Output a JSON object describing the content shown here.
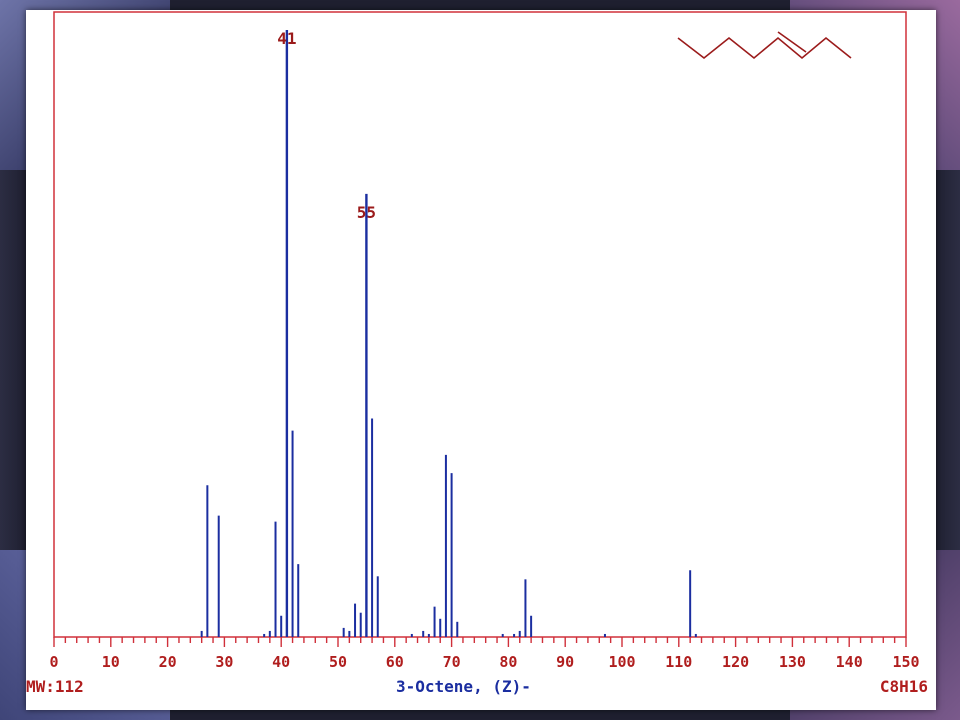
{
  "chart_data": {
    "type": "bar",
    "title": "3-Octene, (Z)-",
    "molecular_weight_label": "MW:112",
    "formula_label": "C8H16",
    "xlabel": "",
    "ylabel": "",
    "xlim": [
      0,
      150
    ],
    "ylim": [
      0,
      100
    ],
    "x_ticks": [
      "0",
      "10",
      "20",
      "30",
      "40",
      "50",
      "60",
      "70",
      "80",
      "90",
      "100",
      "110",
      "120",
      "130",
      "140",
      "150"
    ],
    "peak_annotations": [
      {
        "x": 41,
        "label": "41"
      },
      {
        "x": 55,
        "label": "55"
      }
    ],
    "series": [
      {
        "values": [
          {
            "x": 26,
            "y": 1
          },
          {
            "x": 27,
            "y": 25
          },
          {
            "x": 29,
            "y": 20
          },
          {
            "x": 37,
            "y": 0.5
          },
          {
            "x": 38,
            "y": 1
          },
          {
            "x": 39,
            "y": 19
          },
          {
            "x": 40,
            "y": 3.5
          },
          {
            "x": 41,
            "y": 100
          },
          {
            "x": 42,
            "y": 34
          },
          {
            "x": 43,
            "y": 12
          },
          {
            "x": 51,
            "y": 1.5
          },
          {
            "x": 52,
            "y": 1
          },
          {
            "x": 53,
            "y": 5.5
          },
          {
            "x": 54,
            "y": 4
          },
          {
            "x": 55,
            "y": 73
          },
          {
            "x": 56,
            "y": 36
          },
          {
            "x": 57,
            "y": 10
          },
          {
            "x": 63,
            "y": 0.5
          },
          {
            "x": 65,
            "y": 1
          },
          {
            "x": 66,
            "y": 0.5
          },
          {
            "x": 67,
            "y": 5
          },
          {
            "x": 68,
            "y": 3
          },
          {
            "x": 69,
            "y": 30
          },
          {
            "x": 70,
            "y": 27
          },
          {
            "x": 71,
            "y": 2.5
          },
          {
            "x": 79,
            "y": 0.5
          },
          {
            "x": 81,
            "y": 0.5
          },
          {
            "x": 82,
            "y": 1
          },
          {
            "x": 83,
            "y": 9.5
          },
          {
            "x": 84,
            "y": 3.5
          },
          {
            "x": 97,
            "y": 0.5
          },
          {
            "x": 112,
            "y": 11
          },
          {
            "x": 113,
            "y": 0.5
          }
        ]
      }
    ],
    "structure_icon": "zigzag-alkene-skeletal-formula",
    "colors": {
      "axis": "#d0303a",
      "bars": "#1b2ea0",
      "labels": "#b01e1e",
      "title": "#1b2ea0"
    }
  }
}
